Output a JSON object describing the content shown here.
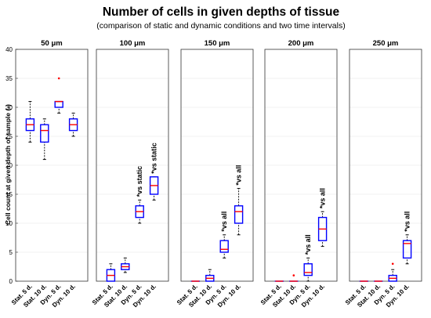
{
  "chart_data": {
    "type": "boxplot",
    "title": "Number of cells in given depths of tissue",
    "subtitle": "(comparison of static and dynamic conditions and two time intervals)",
    "ylabel": "Cell count at given depth of sample (-)",
    "xlabel": "",
    "ylim": [
      0,
      40
    ],
    "yticks": [
      0,
      5,
      10,
      15,
      20,
      25,
      30,
      35,
      40
    ],
    "grid": "horizontal",
    "categories": [
      "Stat. 5 d.",
      "Stat. 10 d.",
      "Dyn. 5 d.",
      "Dyn. 10 d."
    ],
    "colors": {
      "box": "#0000ff",
      "median": "#ff0000",
      "outlier": "#ff0000",
      "whisker": "#000000"
    },
    "panels": [
      {
        "title": "50 μm",
        "boxes": [
          {
            "q1": 26,
            "median": 27,
            "q3": 28,
            "whisker_low": 24,
            "whisker_high": 31,
            "outliers": []
          },
          {
            "q1": 24,
            "median": 26,
            "q3": 27,
            "whisker_low": 21,
            "whisker_high": 28,
            "outliers": []
          },
          {
            "q1": 30,
            "median": 31,
            "q3": 31,
            "whisker_low": 29,
            "whisker_high": 31,
            "outliers": [
              35
            ]
          },
          {
            "q1": 26,
            "median": 27,
            "q3": 28,
            "whisker_low": 25,
            "whisker_high": 29,
            "outliers": []
          }
        ],
        "annotations": [
          "",
          "",
          "",
          ""
        ]
      },
      {
        "title": "100 μm",
        "boxes": [
          {
            "q1": 0,
            "median": 1,
            "q3": 2,
            "whisker_low": 0,
            "whisker_high": 3,
            "outliers": []
          },
          {
            "q1": 2,
            "median": 2.5,
            "q3": 3,
            "whisker_low": 1.5,
            "whisker_high": 4,
            "outliers": []
          },
          {
            "q1": 11,
            "median": 12,
            "q3": 13,
            "whisker_low": 10,
            "whisker_high": 14,
            "outliers": []
          },
          {
            "q1": 15,
            "median": 16.5,
            "q3": 18,
            "whisker_low": 14,
            "whisker_high": 18,
            "outliers": []
          }
        ],
        "annotations": [
          "",
          "",
          "*vs static",
          "*vs static"
        ]
      },
      {
        "title": "150 μm",
        "boxes": [
          {
            "q1": 0,
            "median": 0,
            "q3": 0,
            "whisker_low": 0,
            "whisker_high": 0,
            "outliers": []
          },
          {
            "q1": 0,
            "median": 0.5,
            "q3": 1,
            "whisker_low": 0,
            "whisker_high": 2,
            "outliers": []
          },
          {
            "q1": 5,
            "median": 5.5,
            "q3": 7,
            "whisker_low": 4,
            "whisker_high": 8,
            "outliers": []
          },
          {
            "q1": 10,
            "median": 12,
            "q3": 13,
            "whisker_low": 8,
            "whisker_high": 16,
            "outliers": []
          }
        ],
        "annotations": [
          "",
          "",
          "*vs all",
          "*vs all"
        ]
      },
      {
        "title": "200 μm",
        "boxes": [
          {
            "q1": 0,
            "median": 0,
            "q3": 0,
            "whisker_low": 0,
            "whisker_high": 0,
            "outliers": []
          },
          {
            "q1": 0,
            "median": 0,
            "q3": 0,
            "whisker_low": 0,
            "whisker_high": 0,
            "outliers": [
              1
            ]
          },
          {
            "q1": 1,
            "median": 1.5,
            "q3": 3,
            "whisker_low": 0,
            "whisker_high": 4,
            "outliers": []
          },
          {
            "q1": 7,
            "median": 9,
            "q3": 11,
            "whisker_low": 6,
            "whisker_high": 12,
            "outliers": []
          }
        ],
        "annotations": [
          "",
          "",
          "*vs all",
          "*vs all"
        ]
      },
      {
        "title": "250 μm",
        "boxes": [
          {
            "q1": 0,
            "median": 0,
            "q3": 0,
            "whisker_low": 0,
            "whisker_high": 0,
            "outliers": []
          },
          {
            "q1": 0,
            "median": 0,
            "q3": 0,
            "whisker_low": 0,
            "whisker_high": 0,
            "outliers": []
          },
          {
            "q1": 0,
            "median": 0.5,
            "q3": 1,
            "whisker_low": 0,
            "whisker_high": 2,
            "outliers": [
              3
            ]
          },
          {
            "q1": 4,
            "median": 6.5,
            "q3": 7,
            "whisker_low": 3,
            "whisker_high": 8,
            "outliers": []
          }
        ],
        "annotations": [
          "",
          "",
          "",
          "*vs all"
        ]
      }
    ]
  }
}
